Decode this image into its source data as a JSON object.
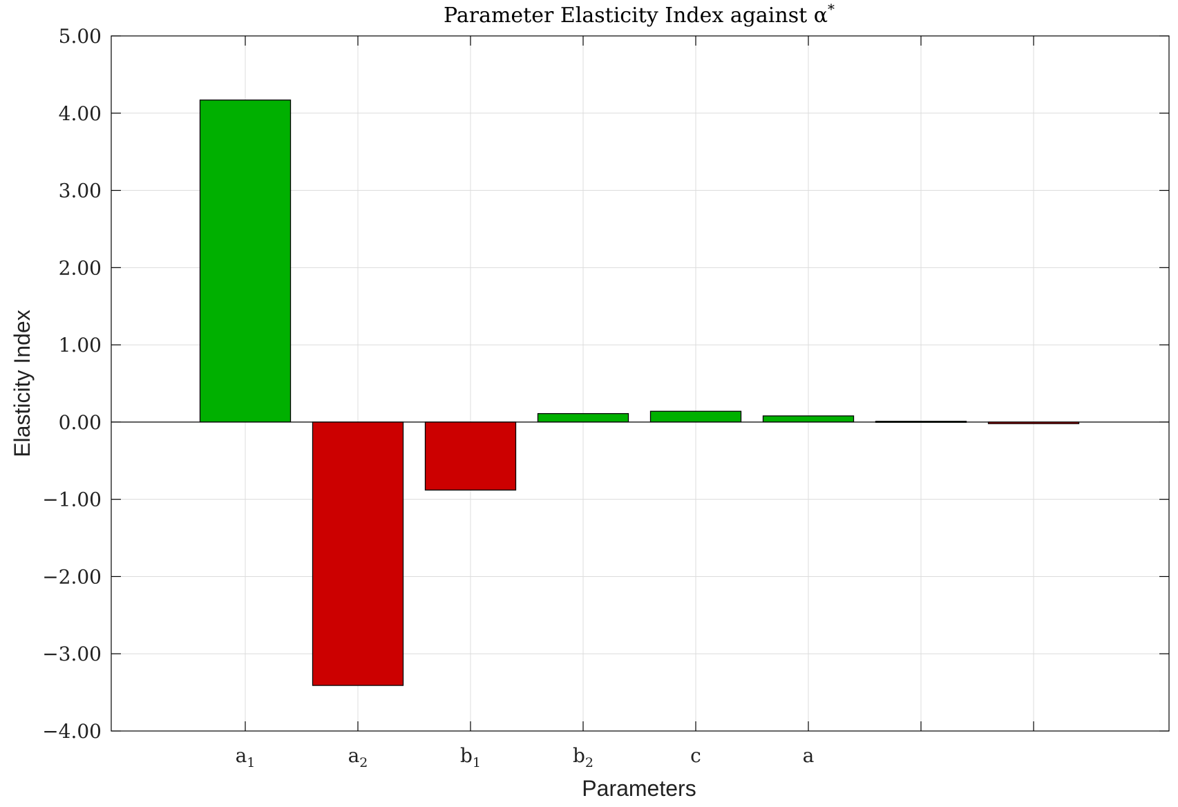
{
  "chart_data": {
    "type": "bar",
    "title": "Parameter Elasticity Index against α*",
    "xlabel": "Parameters",
    "ylabel": "Elasticity Index",
    "ylim": [
      -4,
      5
    ],
    "yticks": [
      "−4.00",
      "−3.00",
      "−2.00",
      "−1.00",
      "0.00",
      "1.00",
      "2.00",
      "3.00",
      "4.00",
      "5.00"
    ],
    "grid": true,
    "categories": [
      {
        "base": "a",
        "sub": "1"
      },
      {
        "base": "a",
        "sub": "2"
      },
      {
        "base": "b",
        "sub": "1"
      },
      {
        "base": "b",
        "sub": "2"
      },
      {
        "base": "c",
        "sub": ""
      },
      {
        "base": "a",
        "sub": ""
      },
      {
        "base": "",
        "sub": ""
      },
      {
        "base": "",
        "sub": ""
      }
    ],
    "values": [
      4.17,
      -3.41,
      -0.88,
      0.11,
      0.14,
      0.08,
      0.01,
      -0.02
    ],
    "colors": {
      "positive": "#00b000",
      "negative": "#cc0000",
      "edge": "#000000"
    }
  }
}
